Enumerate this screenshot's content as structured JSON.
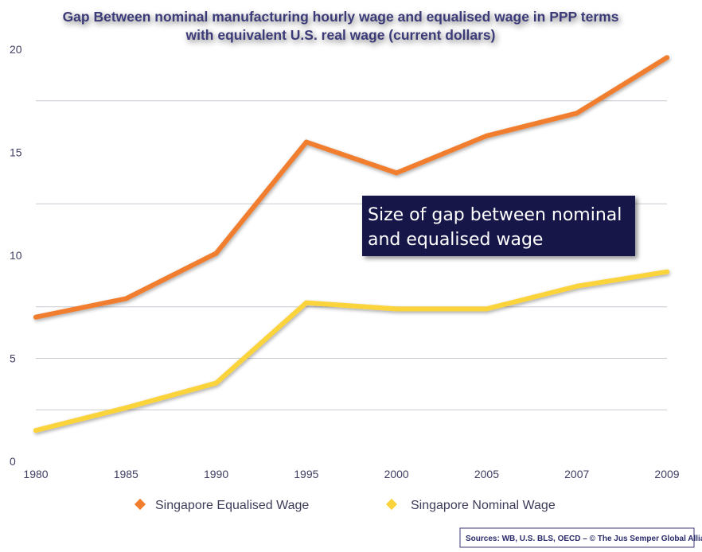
{
  "chart_data": {
    "type": "line",
    "title_line1": "Gap Between nominal manufacturing hourly wage and equalised wage in PPP terms",
    "title_line2": "with equivalent U.S. real wage (current dollars)",
    "categories": [
      "1980",
      "1985",
      "1990",
      "1995",
      "2000",
      "2005",
      "2007",
      "2009"
    ],
    "y_ticks": [
      "0",
      "5",
      "10",
      "15",
      "20"
    ],
    "ylim": [
      0,
      20
    ],
    "gridlines": [
      2.5,
      5,
      7.5,
      12.5,
      17.5
    ],
    "series": [
      {
        "name": "Singapore Equalised Wage",
        "color": "#f07e2d",
        "values": [
          7.0,
          7.9,
          10.1,
          15.5,
          14.0,
          15.8,
          16.9,
          19.6
        ]
      },
      {
        "name": "Singapore Nominal Wage",
        "color": "#fbd33a",
        "values": [
          1.5,
          2.6,
          3.8,
          7.7,
          7.4,
          7.4,
          8.5,
          9.2
        ]
      }
    ],
    "annotation": {
      "line1": "Size of gap between nominal",
      "line2": "and equalised wage",
      "bg_color": "#17174a"
    },
    "source": "Sources: WB, U.S. BLS, OECD – © The Jus Semper Global Alliance",
    "grid": true,
    "legend_position": "bottom"
  }
}
